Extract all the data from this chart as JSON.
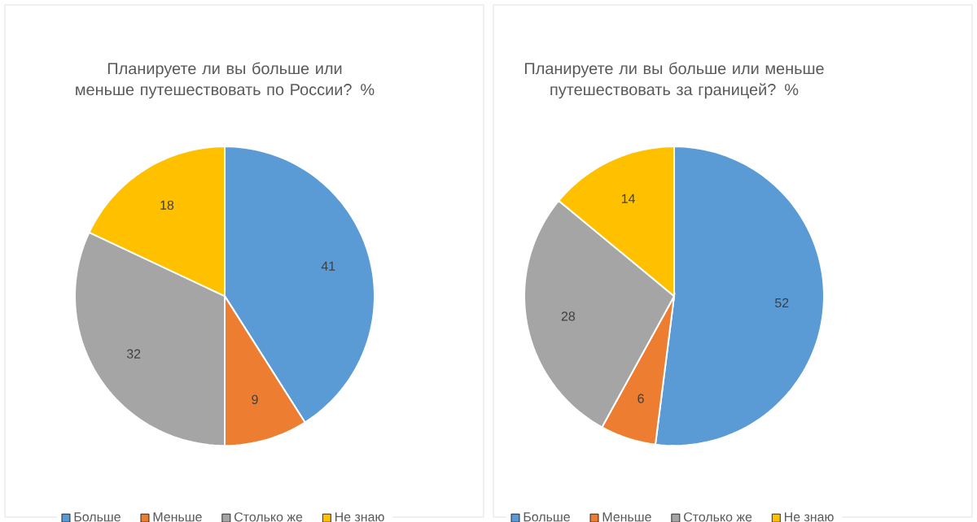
{
  "chart_data": [
    {
      "type": "pie",
      "title": "Планируете ли вы больше или меньше путешествовать по России? %",
      "categories": [
        "Больше",
        "Меньше",
        "Столько же",
        "Не знаю"
      ],
      "values": [
        41,
        9,
        32,
        18
      ],
      "colors": [
        "#5b9bd5",
        "#ed7d31",
        "#a5a5a5",
        "#ffc000"
      ],
      "legend": "bottom",
      "data_labels": true
    },
    {
      "type": "pie",
      "title": "Планируете ли вы больше или меньше путешествовать за границей? %",
      "categories": [
        "Больше",
        "Меньше",
        "Столько же",
        "Не знаю"
      ],
      "values": [
        52,
        6,
        28,
        14
      ],
      "colors": [
        "#5b9bd5",
        "#ed7d31",
        "#a5a5a5",
        "#ffc000"
      ],
      "legend": "bottom",
      "data_labels": true
    }
  ]
}
